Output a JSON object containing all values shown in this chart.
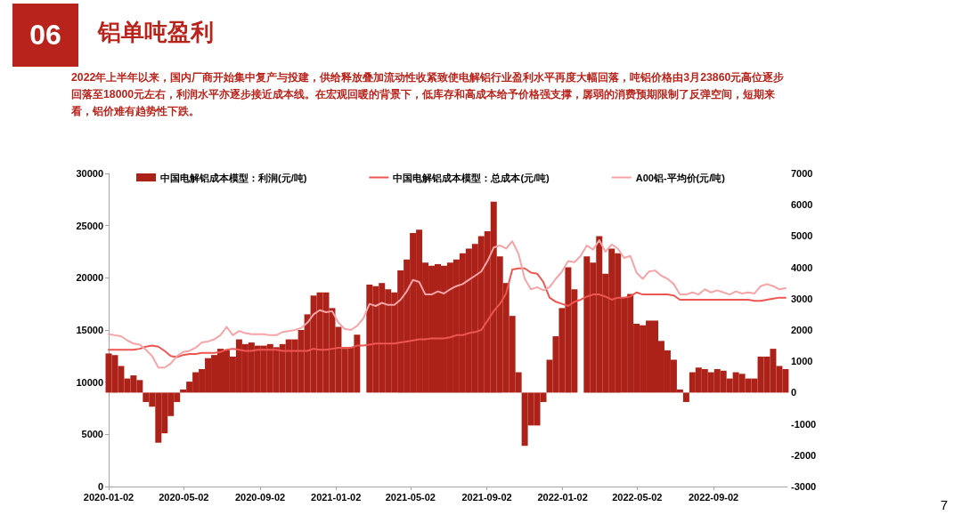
{
  "chart_data": {
    "type": "bar",
    "title": "铝单吨盈利",
    "subtitle": "2022年上半年以来，国内厂商开始集中复产与投建，供给释放叠加流动性收紧致使电解铝行业盈利水平再度大幅回落，吨铝价格由3月23860元高位逐步回落至18000元左右，利润水平亦逐步接近成本线。在宏观回暖的背景下，低库存和高成本给予价格强支撑，孱弱的消费预期限制了反弹空间，短期来看，铝价难有趋势性下跌。",
    "annotations": [
      "06",
      "7"
    ],
    "x": [
      "2020-01-02",
      "2020-01-12",
      "2020-01-22",
      "2020-02-01",
      "2020-02-11",
      "2020-02-21",
      "2020-03-02",
      "2020-03-12",
      "2020-03-22",
      "2020-04-01",
      "2020-04-11",
      "2020-04-21",
      "2020-05-01",
      "2020-05-11",
      "2020-05-21",
      "2020-05-31",
      "2020-06-10",
      "2020-06-20",
      "2020-06-30",
      "2020-07-10",
      "2020-07-20",
      "2020-07-30",
      "2020-08-09",
      "2020-08-19",
      "2020-08-29",
      "2020-09-08",
      "2020-09-18",
      "2020-09-28",
      "2020-10-08",
      "2020-10-18",
      "2020-10-28",
      "2020-11-07",
      "2020-11-17",
      "2020-11-27",
      "2020-12-07",
      "2020-12-17",
      "2020-12-27",
      "2021-01-06",
      "2021-01-16",
      "2021-01-26",
      "2021-02-05",
      "2021-02-15",
      "2021-02-25",
      "2021-03-07",
      "2021-03-17",
      "2021-03-27",
      "2021-04-06",
      "2021-04-16",
      "2021-04-26",
      "2021-05-06",
      "2021-05-16",
      "2021-05-26",
      "2021-06-05",
      "2021-06-15",
      "2021-06-25",
      "2021-07-05",
      "2021-07-15",
      "2021-07-25",
      "2021-08-04",
      "2021-08-14",
      "2021-08-24",
      "2021-09-03",
      "2021-09-13",
      "2021-09-23",
      "2021-10-03",
      "2021-10-13",
      "2021-10-23",
      "2021-11-02",
      "2021-11-12",
      "2021-11-22",
      "2021-12-02",
      "2021-12-12",
      "2021-12-22",
      "2022-01-01",
      "2022-01-11",
      "2022-01-21",
      "2022-01-31",
      "2022-02-10",
      "2022-02-20",
      "2022-03-02",
      "2022-03-12",
      "2022-03-22",
      "2022-04-01",
      "2022-04-11",
      "2022-04-21",
      "2022-05-01",
      "2022-05-11",
      "2022-05-21",
      "2022-05-31",
      "2022-06-10",
      "2022-06-20",
      "2022-06-30",
      "2022-07-10",
      "2022-07-20",
      "2022-07-30",
      "2022-08-09",
      "2022-08-19",
      "2022-08-29",
      "2022-09-08",
      "2022-09-18",
      "2022-09-28",
      "2022-10-08",
      "2022-10-18",
      "2022-10-28",
      "2022-11-07",
      "2022-11-17",
      "2022-11-27",
      "2022-12-07",
      "2022-12-17",
      "2022-12-27"
    ],
    "series": [
      {
        "name": "中国电解铝成本模型：利润(元/吨)",
        "axis": "y2",
        "color": "#ad2218",
        "values": [
          1250,
          1200,
          850,
          450,
          550,
          400,
          -300,
          -450,
          -1600,
          -1300,
          -750,
          -300,
          100,
          350,
          650,
          750,
          1100,
          1200,
          1400,
          1350,
          1150,
          1700,
          1550,
          1600,
          1500,
          1500,
          1550,
          1450,
          1550,
          1700,
          1700,
          2000,
          2500,
          3100,
          3200,
          3200,
          2700,
          2100,
          1400,
          1450,
          1850,
          null,
          3450,
          3400,
          3500,
          3300,
          3200,
          3900,
          4250,
          5100,
          5200,
          4150,
          4050,
          4100,
          4050,
          4150,
          4250,
          4450,
          4600,
          4750,
          5000,
          5150,
          6100,
          4350,
          3500,
          2450,
          650,
          -1700,
          -1050,
          -1050,
          -300,
          1050,
          1800,
          2700,
          4000,
          3300,
          null,
          4350,
          4150,
          5000,
          3800,
          4600,
          4450,
          3050,
          3150,
          2200,
          2150,
          2300,
          2300,
          1650,
          1350,
          1050,
          100,
          -300,
          650,
          800,
          750,
          650,
          750,
          700,
          450,
          650,
          600,
          450,
          450,
          1150,
          1150,
          1400,
          850,
          750
        ]
      },
      {
        "name": "中国电解铝成本模型：总成本(元/吨)",
        "type": "line",
        "color": "#ee5652",
        "values": [
          13100,
          13100,
          13100,
          13100,
          13100,
          13200,
          13400,
          13500,
          13400,
          13000,
          12500,
          12400,
          12600,
          12700,
          12700,
          12800,
          12800,
          12800,
          12900,
          13100,
          13200,
          13100,
          13000,
          13000,
          13100,
          13100,
          13100,
          13100,
          13000,
          13000,
          13000,
          13000,
          13000,
          13200,
          13100,
          13100,
          13200,
          13300,
          13300,
          13300,
          13500,
          13500,
          13600,
          13700,
          13700,
          13700,
          13700,
          13800,
          13900,
          14000,
          14100,
          14100,
          14200,
          14200,
          14200,
          14300,
          14500,
          14500,
          14700,
          14800,
          15000,
          15900,
          16800,
          17500,
          18500,
          20800,
          20900,
          20900,
          20500,
          20400,
          19600,
          18100,
          17700,
          17500,
          17300,
          17700,
          17900,
          18200,
          18400,
          18400,
          18200,
          17900,
          18100,
          18100,
          18200,
          18600,
          18400,
          18400,
          18400,
          18400,
          18400,
          18300,
          17900,
          17900,
          17900,
          17900,
          17900,
          17900,
          17900,
          17900,
          17900,
          17900,
          17900,
          17900,
          17800,
          17800,
          17900,
          18000,
          18100,
          18100
        ]
      },
      {
        "name": "A00铝-平均价(元/吨)",
        "type": "line",
        "color": "#f5a5a7",
        "values": [
          14600,
          14500,
          14400,
          14000,
          13700,
          13600,
          13100,
          12500,
          11400,
          11400,
          11800,
          12500,
          12900,
          13000,
          13300,
          13800,
          13900,
          14100,
          14500,
          15300,
          14500,
          14900,
          14700,
          14600,
          14600,
          14600,
          14500,
          14500,
          14800,
          14900,
          15000,
          15200,
          15700,
          16500,
          16900,
          16700,
          16800,
          15700,
          15100,
          15000,
          15400,
          16100,
          17500,
          17300,
          17600,
          17400,
          17400,
          17900,
          18700,
          19800,
          19600,
          18400,
          18400,
          18700,
          18500,
          18900,
          19200,
          19400,
          19800,
          20200,
          20600,
          21600,
          22900,
          23100,
          22800,
          23500,
          22300,
          19900,
          18900,
          19100,
          18800,
          19100,
          19900,
          20600,
          21600,
          21500,
          22100,
          23100,
          22700,
          23600,
          22500,
          23200,
          22800,
          21900,
          22100,
          20500,
          19900,
          20600,
          20700,
          20200,
          19900,
          19400,
          18400,
          18400,
          18600,
          18400,
          18900,
          18600,
          18800,
          18600,
          18400,
          18700,
          18500,
          18600,
          18500,
          19200,
          19400,
          19200,
          18900,
          19000
        ]
      }
    ],
    "xlim": [
      "2020-01-02",
      "2022-12-30"
    ],
    "xticks": [
      "2020-01-02",
      "2020-05-02",
      "2020-09-02",
      "2021-01-02",
      "2021-05-02",
      "2021-09-02",
      "2022-01-02",
      "2022-05-02",
      "2022-09-02"
    ],
    "ylim": [
      0,
      30000
    ],
    "yticks": [
      0,
      5000,
      10000,
      15000,
      20000,
      25000,
      30000
    ],
    "y2lim": [
      -3000,
      7000
    ],
    "y2ticks": [
      -3000,
      -2000,
      -1000,
      0,
      1000,
      2000,
      3000,
      4000,
      5000,
      6000,
      7000
    ],
    "grid": false,
    "legend": "top",
    "marker": "none",
    "line_style": "solid"
  }
}
